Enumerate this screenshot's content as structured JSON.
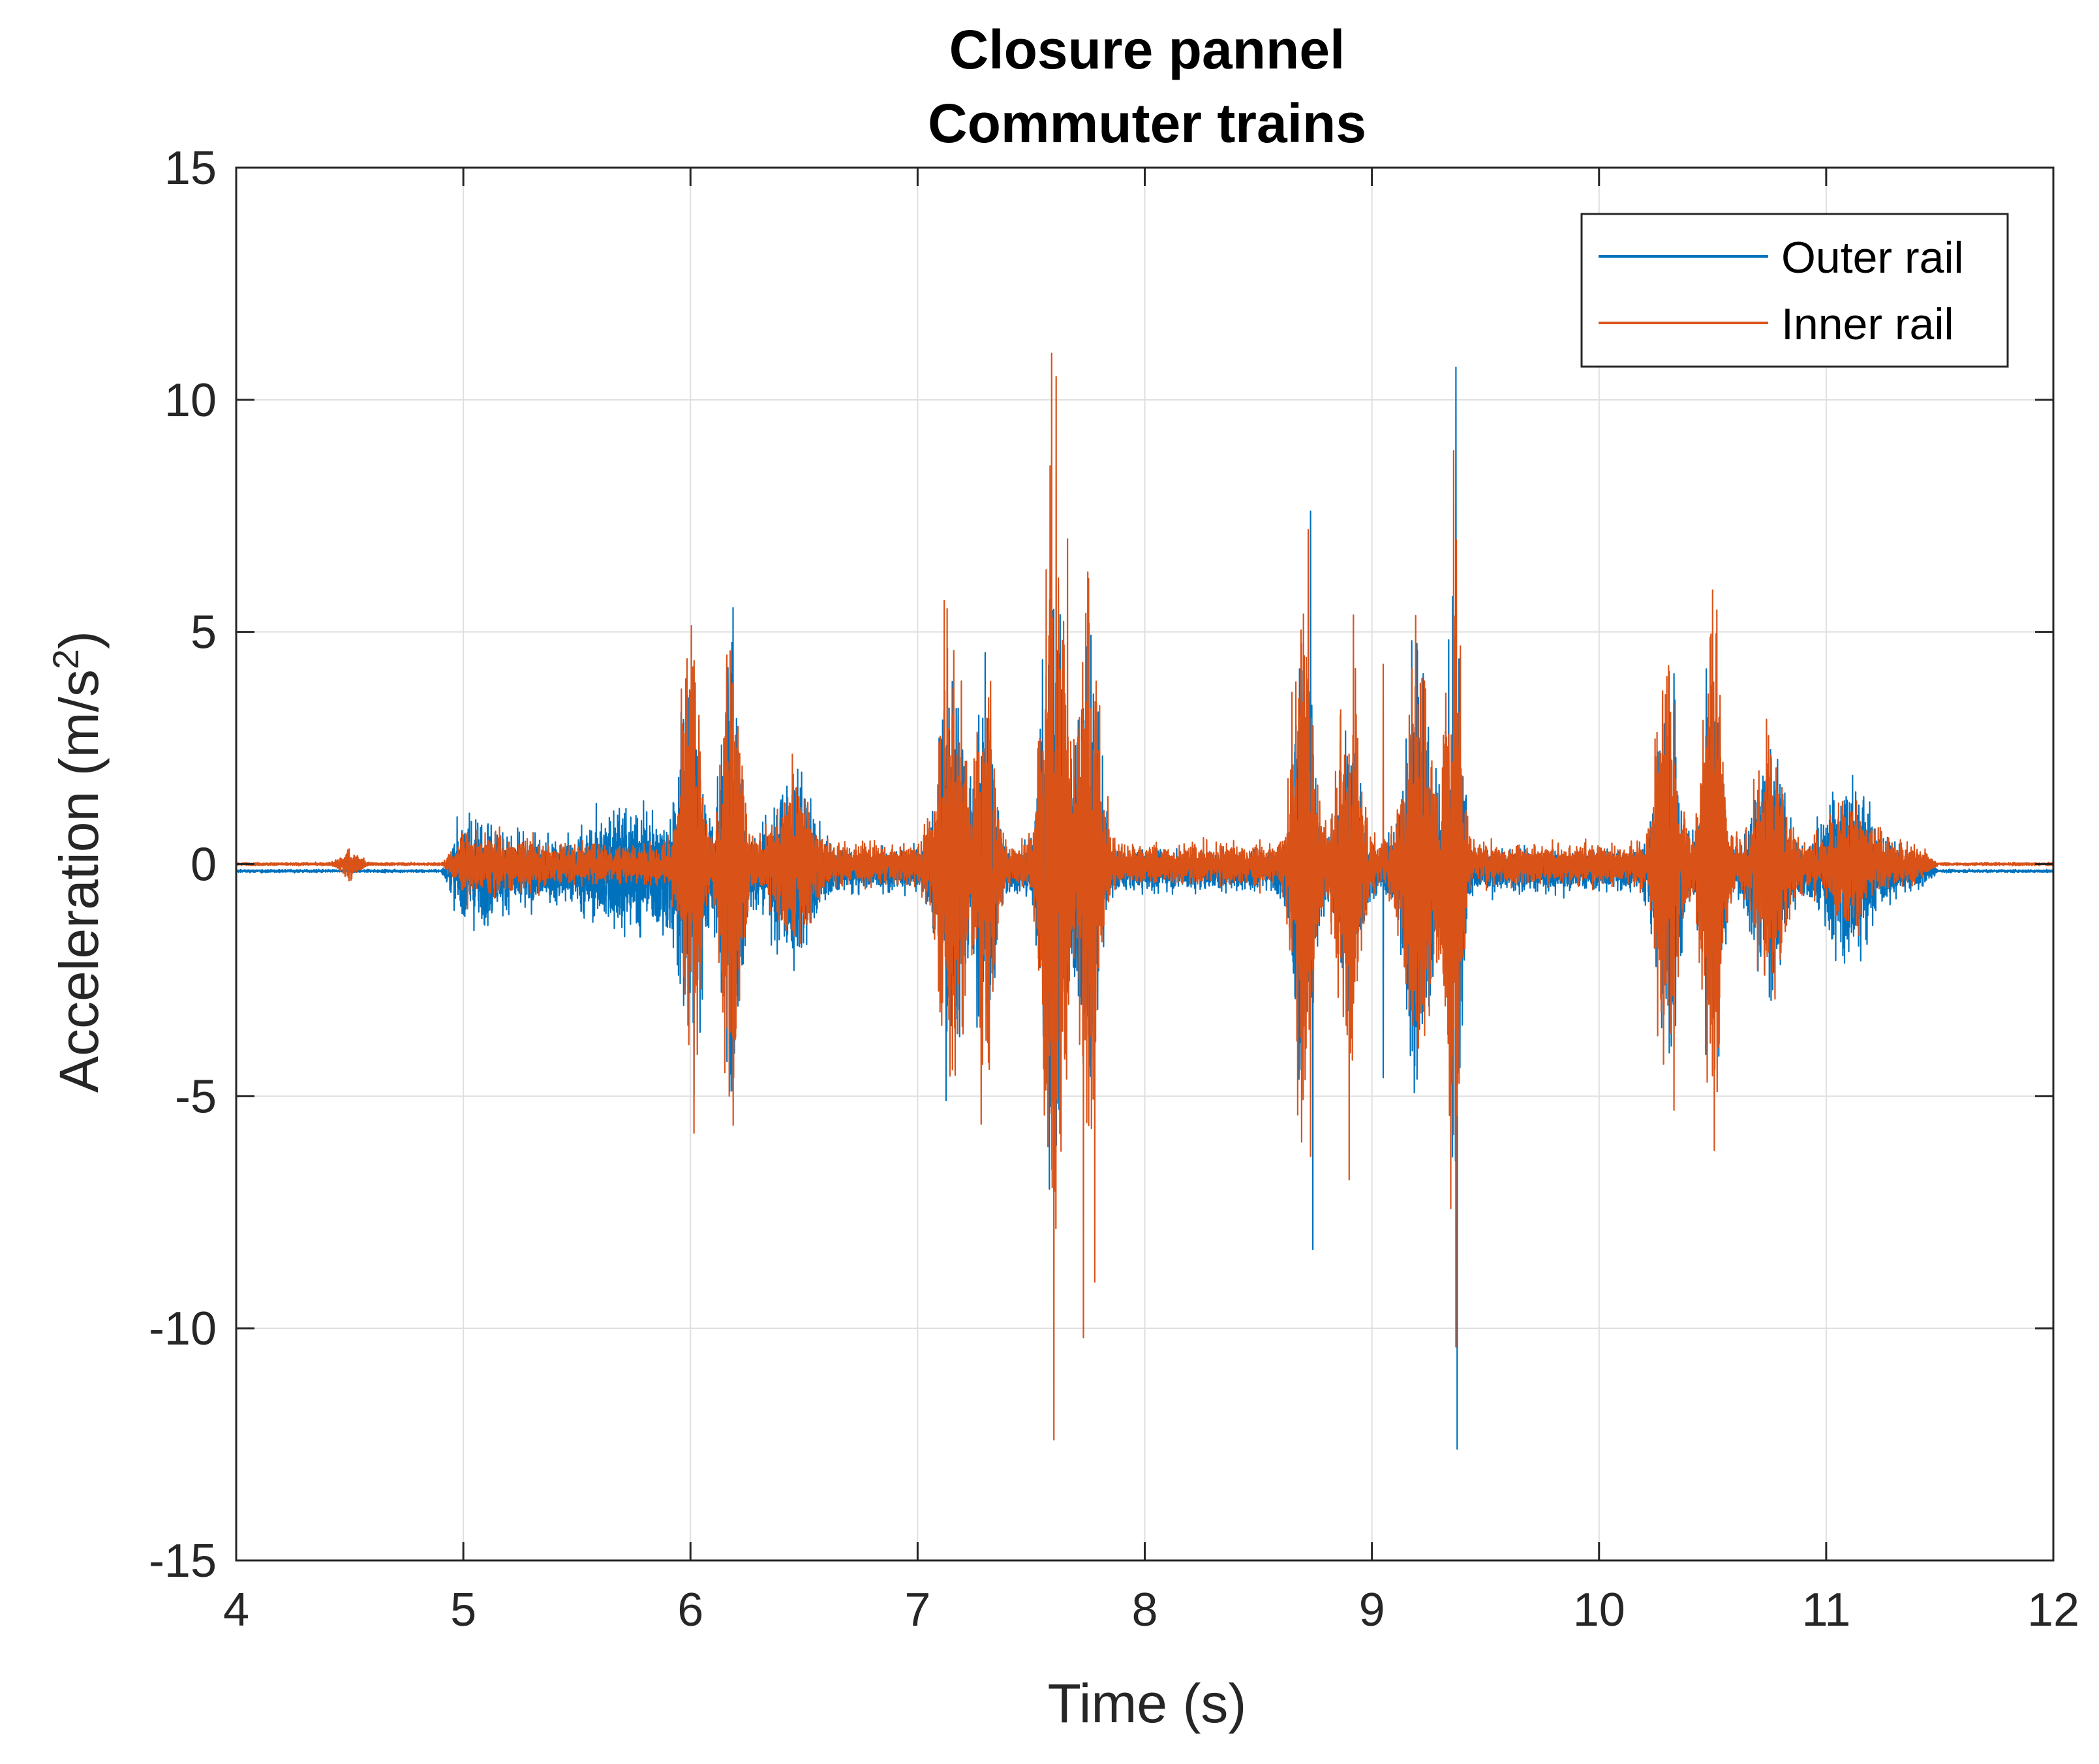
{
  "chart_data": {
    "type": "line",
    "title": [
      "Closure pannel",
      "Commuter trains"
    ],
    "xlabel": "Time (s)",
    "ylabel": "Acceleration (m/s",
    "ylabel_superscript": "2",
    "ylabel_suffix": ")",
    "xlim": [
      4,
      12
    ],
    "ylim": [
      -15,
      15
    ],
    "xticks": [
      4,
      5,
      6,
      7,
      8,
      9,
      10,
      11,
      12
    ],
    "yticks": [
      -15,
      -10,
      -5,
      0,
      5,
      10,
      15
    ],
    "xtick_labels": [
      "4",
      "5",
      "6",
      "7",
      "8",
      "9",
      "10",
      "11",
      "12"
    ],
    "ytick_labels": [
      "-15",
      "-10",
      "-5",
      "0",
      "5",
      "10",
      "15"
    ],
    "grid": true,
    "legend_position": "top-right",
    "signal_start": 4.9,
    "signal_end": 11.5,
    "series": [
      {
        "name": "Outer rail",
        "color": "#0072BD",
        "baseline": -0.15,
        "bursts": [
          {
            "t": 5.0,
            "w": 0.3,
            "a": 0.45
          },
          {
            "t": 5.8,
            "w": 0.3,
            "a": 0.7
          },
          {
            "t": 6.0,
            "w": 0.05,
            "a": 2.5
          },
          {
            "t": 6.18,
            "w": 0.05,
            "a": 2.8
          },
          {
            "t": 6.45,
            "w": 0.1,
            "a": 1.3
          },
          {
            "t": 7.15,
            "w": 0.07,
            "a": 2.6
          },
          {
            "t": 7.3,
            "w": 0.05,
            "a": 2.4
          },
          {
            "t": 7.6,
            "w": 0.06,
            "a": 4.0
          },
          {
            "t": 7.75,
            "w": 0.06,
            "a": 3.0
          },
          {
            "t": 8.7,
            "w": 0.05,
            "a": 3.5
          },
          {
            "t": 8.9,
            "w": 0.06,
            "a": 2.0
          },
          {
            "t": 9.2,
            "w": 0.07,
            "a": 3.0
          },
          {
            "t": 9.36,
            "w": 0.04,
            "a": 4.5
          },
          {
            "t": 10.3,
            "w": 0.06,
            "a": 2.5
          },
          {
            "t": 10.5,
            "w": 0.05,
            "a": 2.5
          },
          {
            "t": 10.75,
            "w": 0.08,
            "a": 1.6
          },
          {
            "t": 11.1,
            "w": 0.12,
            "a": 1.1
          }
        ],
        "spikes": [
          {
            "t": 9.37,
            "y": 10.7
          },
          {
            "t": 9.375,
            "y": -12.6
          },
          {
            "t": 8.73,
            "y": 7.6
          },
          {
            "t": 8.74,
            "y": -8.3
          },
          {
            "t": 10.33,
            "y": 4.1
          },
          {
            "t": 7.55,
            "y": 4.4
          },
          {
            "t": 7.58,
            "y": -7.0
          },
          {
            "t": 9.05,
            "y": -4.6
          },
          {
            "t": 9.2,
            "y": 4.6
          },
          {
            "t": 6.18,
            "y": 4.1
          },
          {
            "t": 7.11,
            "y": 3.1
          },
          {
            "t": 10.47,
            "y": -4.1
          }
        ]
      },
      {
        "name": "Inner rail",
        "color": "#D95319",
        "baseline": 0.0,
        "bursts": [
          {
            "t": 4.5,
            "w": 0.05,
            "a": 0.2
          },
          {
            "t": 5.0,
            "w": 0.3,
            "a": 0.15
          },
          {
            "t": 6.0,
            "w": 0.05,
            "a": 3.0
          },
          {
            "t": 6.18,
            "w": 0.05,
            "a": 3.3
          },
          {
            "t": 6.45,
            "w": 0.1,
            "a": 0.9
          },
          {
            "t": 7.15,
            "w": 0.07,
            "a": 3.2
          },
          {
            "t": 7.3,
            "w": 0.05,
            "a": 2.6
          },
          {
            "t": 7.6,
            "w": 0.06,
            "a": 5.0
          },
          {
            "t": 7.75,
            "w": 0.06,
            "a": 3.5
          },
          {
            "t": 8.7,
            "w": 0.05,
            "a": 4.0
          },
          {
            "t": 8.9,
            "w": 0.06,
            "a": 3.0
          },
          {
            "t": 9.2,
            "w": 0.07,
            "a": 3.2
          },
          {
            "t": 9.36,
            "w": 0.04,
            "a": 5.0
          },
          {
            "t": 10.3,
            "w": 0.06,
            "a": 2.5
          },
          {
            "t": 10.5,
            "w": 0.05,
            "a": 3.5
          },
          {
            "t": 10.75,
            "w": 0.08,
            "a": 1.5
          },
          {
            "t": 11.1,
            "w": 0.12,
            "a": 0.6
          }
        ],
        "spikes": [
          {
            "t": 7.59,
            "y": 11.0
          },
          {
            "t": 7.6,
            "y": -12.4
          },
          {
            "t": 7.61,
            "y": 10.5
          },
          {
            "t": 7.73,
            "y": -10.2
          },
          {
            "t": 7.78,
            "y": -9.0
          },
          {
            "t": 7.66,
            "y": 7.0
          },
          {
            "t": 8.9,
            "y": 8.2
          },
          {
            "t": 8.9,
            "y": -6.8
          },
          {
            "t": 9.36,
            "y": 8.9
          },
          {
            "t": 9.37,
            "y": -10.4
          },
          {
            "t": 7.13,
            "y": 5.5
          },
          {
            "t": 6.16,
            "y": 4.5
          },
          {
            "t": 6.19,
            "y": -4.6
          },
          {
            "t": 6.03,
            "y": -4.1
          },
          {
            "t": 10.5,
            "y": 5.9
          },
          {
            "t": 10.33,
            "y": -5.3
          },
          {
            "t": 10.52,
            "y": -4.9
          },
          {
            "t": 7.28,
            "y": -5.6
          },
          {
            "t": 8.73,
            "y": -6.3
          },
          {
            "t": 8.72,
            "y": 7.2
          },
          {
            "t": 9.05,
            "y": 4.3
          }
        ]
      }
    ]
  }
}
